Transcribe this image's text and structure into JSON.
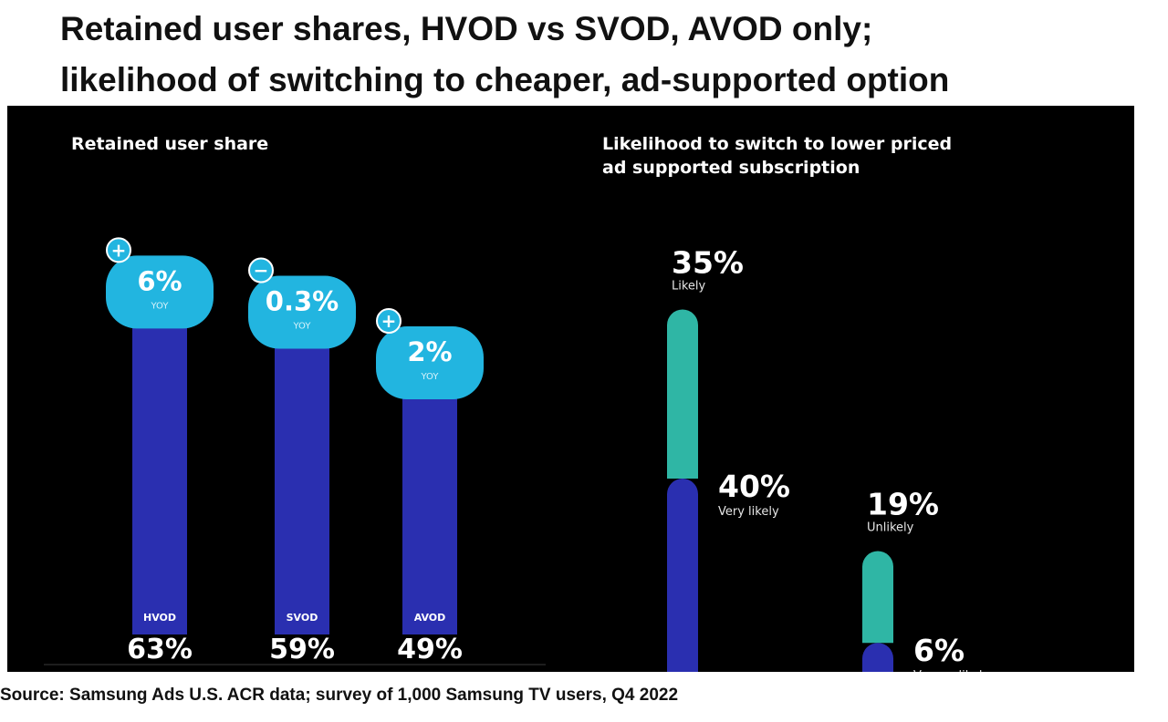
{
  "page": {
    "title_line1": "Retained user shares, HVOD vs SVOD, AVOD only;",
    "title_line2": "likelihood of switching to cheaper, ad-supported option",
    "source": "Source: Samsung Ads U.S. ACR data; survey of 1,000 Samsung TV users, Q4 2022"
  },
  "colors": {
    "panel_bg": "#000000",
    "bar_blue": "#2a2fb0",
    "badge_cyan": "#22b5e0",
    "teal": "#2fb6a5",
    "text": "#ffffff"
  },
  "chart_data": [
    {
      "type": "bar",
      "title": "Retained user share",
      "categories": [
        "HVOD",
        "SVOD",
        "AVOD"
      ],
      "values": [
        63,
        59,
        49
      ],
      "value_labels": [
        "63%",
        "59%",
        "49%"
      ],
      "yoy_change": [
        6,
        -0.3,
        2
      ],
      "yoy_signs": [
        "+",
        "−",
        "+"
      ],
      "yoy_labels": [
        "6%",
        "0.3%",
        "2%"
      ],
      "yoy_caption": "YOY",
      "ylim": [
        0,
        100
      ],
      "grid": false,
      "legend": "none"
    },
    {
      "type": "bar",
      "title_line1": "Likelihood to switch to lower priced",
      "title_line2": "ad supported subscription",
      "stacks": [
        {
          "segments": [
            {
              "name": "Very likely",
              "value": 40,
              "label": "40%",
              "color": "#2a2fb0"
            },
            {
              "name": "Likely",
              "value": 35,
              "label": "35%",
              "color": "#2fb6a5"
            }
          ]
        },
        {
          "segments": [
            {
              "name": "Very unlikely",
              "value": 6,
              "label": "6%",
              "color": "#2a2fb0"
            },
            {
              "name": "Unlikely",
              "value": 19,
              "label": "19%",
              "color": "#2fb6a5"
            }
          ]
        }
      ],
      "ylim": [
        0,
        75
      ],
      "grid": false,
      "legend": "inline"
    }
  ]
}
